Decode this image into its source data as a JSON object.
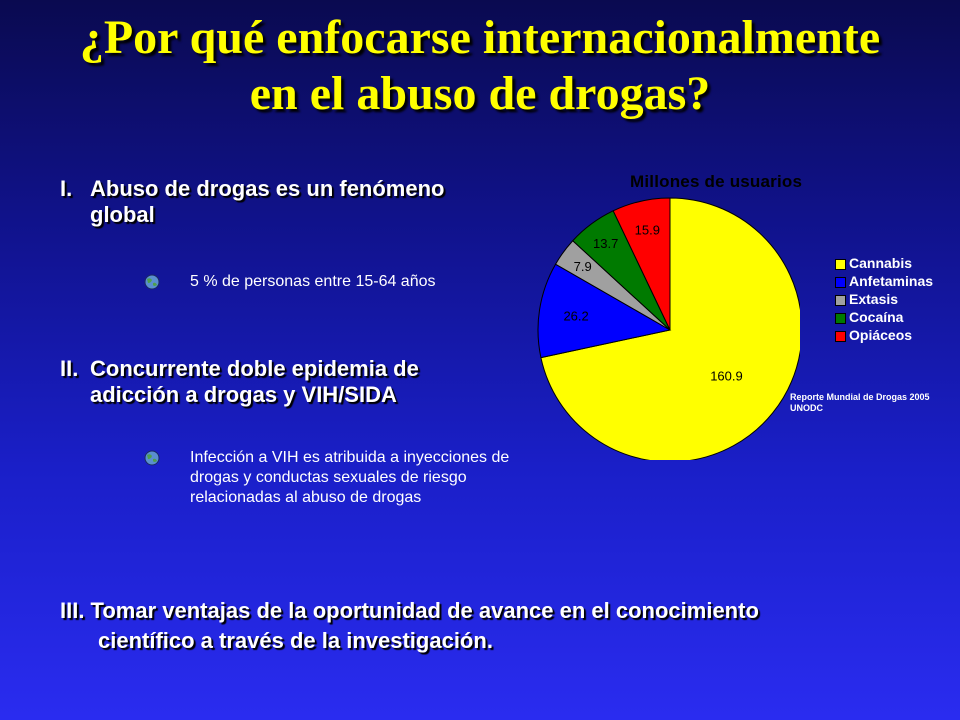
{
  "title": {
    "line1": "¿Por qué enfocarse internacionalmente",
    "line2": "en el abuso de drogas?"
  },
  "sections": [
    {
      "num": "I.",
      "text": "Abuso de drogas es un fenómeno global",
      "bullet": "5 % de personas entre 15-64 años"
    },
    {
      "num": "II.",
      "text": "Concurrente doble epidemia de adicción a drogas y VIH/SIDA",
      "bullet": "Infección a VIH es atribuida a inyecciones de drogas y conductas sexuales de riesgo relacionadas al abuso de drogas"
    }
  ],
  "footer": {
    "line1": "III. Tomar ventajas de la oportunidad de avance en el conocimiento",
    "line2": "científico a través de la investigación."
  },
  "source": {
    "line1": "Reporte Mundial de Drogas 2005",
    "line2": "UNODC"
  },
  "chart_data": {
    "type": "pie",
    "title": "Millones de usuarios",
    "categories": [
      "Cannabis",
      "Anfetaminas",
      "Extasis",
      "Cocaína",
      "Opiáceos"
    ],
    "values": [
      160.9,
      26.2,
      7.9,
      13.7,
      15.9
    ],
    "labels": [
      "160.9",
      "26.2",
      "7.9",
      "13.7",
      "15.9"
    ],
    "colors": [
      "#ffff00",
      "#0000ff",
      "#a0a0a0",
      "#007a00",
      "#ff0000"
    ],
    "legend_position": "right",
    "start_angle_deg": 0,
    "direction": "clockwise"
  }
}
